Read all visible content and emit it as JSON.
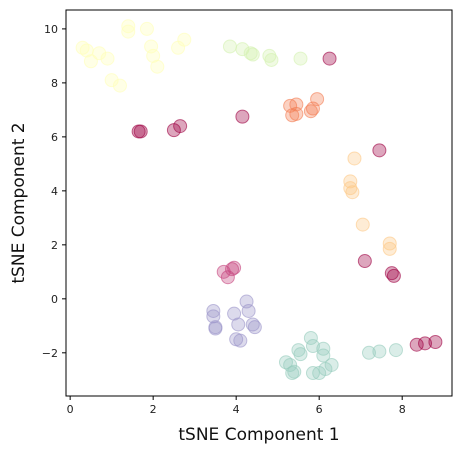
{
  "chart_data": {
    "type": "scatter",
    "xlabel": "tSNE Component 1",
    "ylabel": "tSNE Component 2",
    "xlim": [
      -0.1,
      9.2
    ],
    "ylim": [
      -3.6,
      10.7
    ],
    "xticks": [
      0,
      2,
      4,
      6,
      8
    ],
    "yticks": [
      -2,
      0,
      2,
      4,
      6,
      8,
      10
    ],
    "grid": false,
    "marker_alpha": 0.35,
    "series": [
      {
        "color": "#FFFFB8",
        "points": [
          [
            0.3,
            9.3
          ],
          [
            0.4,
            9.2
          ],
          [
            0.5,
            8.8
          ],
          [
            0.7,
            9.1
          ],
          [
            0.9,
            8.9
          ],
          [
            1.0,
            8.1
          ],
          [
            1.2,
            7.9
          ],
          [
            1.4,
            9.9
          ],
          [
            1.4,
            10.1
          ],
          [
            1.85,
            10.0
          ],
          [
            1.95,
            9.35
          ],
          [
            2.0,
            9.0
          ],
          [
            2.1,
            8.6
          ],
          [
            2.6,
            9.3
          ],
          [
            2.75,
            9.6
          ]
        ]
      },
      {
        "color": "#D3F2B0",
        "points": [
          [
            3.85,
            9.35
          ],
          [
            4.15,
            9.25
          ],
          [
            4.35,
            9.1
          ],
          [
            4.4,
            9.05
          ],
          [
            4.8,
            9.0
          ],
          [
            4.85,
            8.85
          ],
          [
            5.55,
            8.9
          ]
        ]
      },
      {
        "color": "#F47D54",
        "points": [
          [
            5.3,
            7.15
          ],
          [
            5.35,
            6.8
          ],
          [
            5.45,
            6.85
          ],
          [
            5.45,
            7.2
          ],
          [
            5.8,
            6.95
          ],
          [
            5.85,
            7.05
          ],
          [
            5.95,
            7.4
          ]
        ]
      },
      {
        "color": "#FDC886",
        "points": [
          [
            6.75,
            4.35
          ],
          [
            6.75,
            4.1
          ],
          [
            6.8,
            3.95
          ],
          [
            6.85,
            5.2
          ],
          [
            7.05,
            2.75
          ],
          [
            7.7,
            2.05
          ],
          [
            7.7,
            1.85
          ]
        ]
      },
      {
        "color": "#9E0142",
        "points": [
          [
            1.65,
            6.2
          ],
          [
            1.7,
            6.2
          ],
          [
            2.5,
            6.25
          ],
          [
            2.65,
            6.4
          ],
          [
            4.15,
            6.75
          ],
          [
            6.25,
            8.9
          ],
          [
            7.1,
            1.4
          ],
          [
            7.45,
            5.5
          ],
          [
            7.75,
            0.95
          ],
          [
            7.8,
            0.85
          ],
          [
            8.35,
            -1.7
          ],
          [
            8.55,
            -1.65
          ],
          [
            8.8,
            -1.6
          ]
        ]
      },
      {
        "color": "#96CBBC",
        "points": [
          [
            5.2,
            -2.35
          ],
          [
            5.3,
            -2.45
          ],
          [
            5.35,
            -2.75
          ],
          [
            5.4,
            -2.7
          ],
          [
            5.5,
            -1.9
          ],
          [
            5.55,
            -2.05
          ],
          [
            5.8,
            -1.45
          ],
          [
            5.85,
            -2.75
          ],
          [
            5.85,
            -1.75
          ],
          [
            6.0,
            -2.75
          ],
          [
            6.1,
            -1.85
          ],
          [
            6.1,
            -2.1
          ],
          [
            6.15,
            -2.6
          ],
          [
            6.3,
            -2.45
          ],
          [
            7.2,
            -2.0
          ],
          [
            7.45,
            -1.95
          ],
          [
            7.85,
            -1.9
          ]
        ]
      },
      {
        "color": "#9B95C9",
        "points": [
          [
            3.45,
            -0.45
          ],
          [
            3.45,
            -0.65
          ],
          [
            3.5,
            -1.05
          ],
          [
            3.5,
            -1.1
          ],
          [
            3.95,
            -0.55
          ],
          [
            4.0,
            -1.5
          ],
          [
            4.05,
            -0.95
          ],
          [
            4.1,
            -1.55
          ],
          [
            4.25,
            -0.1
          ],
          [
            4.3,
            -0.45
          ],
          [
            4.4,
            -0.95
          ],
          [
            4.45,
            -1.05
          ]
        ]
      },
      {
        "color": "#C7467E",
        "points": [
          [
            3.7,
            1.0
          ],
          [
            3.8,
            0.8
          ],
          [
            3.9,
            1.1
          ],
          [
            3.95,
            1.15
          ]
        ]
      }
    ]
  }
}
